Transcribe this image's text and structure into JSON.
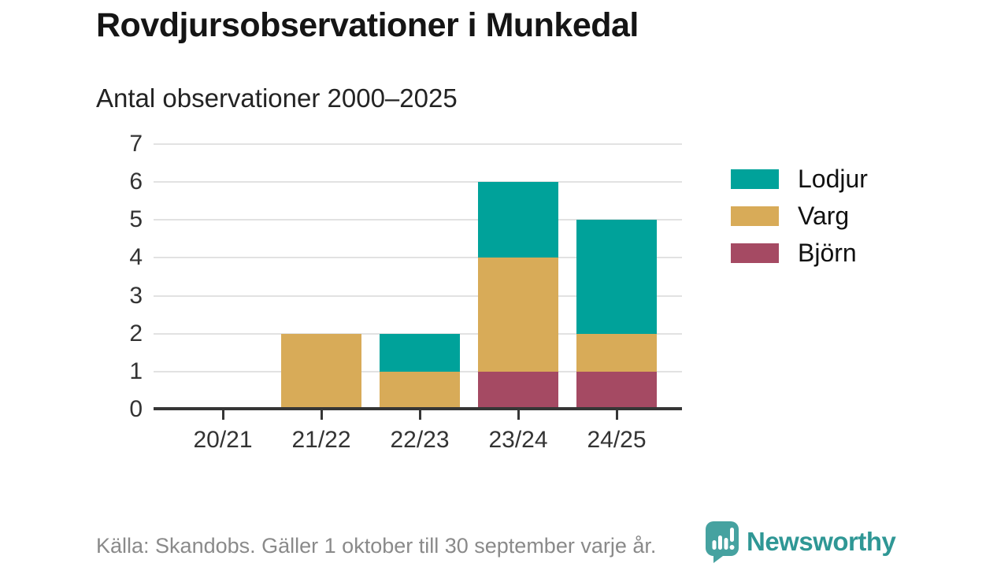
{
  "header": {
    "title": "Rovdjursobservationer i Munkedal",
    "subtitle": "Antal observationer 2000–2025"
  },
  "chart_data": {
    "type": "bar",
    "stacked": true,
    "title": "Rovdjursobservationer i Munkedal",
    "subtitle": "Antal observationer 2000–2025",
    "categories": [
      "20/21",
      "21/22",
      "22/23",
      "23/24",
      "24/25"
    ],
    "series": [
      {
        "name": "Lodjur",
        "color": "#00a29a",
        "values": [
          0,
          0,
          1,
          2,
          3
        ]
      },
      {
        "name": "Varg",
        "color": "#d8ab58",
        "values": [
          0,
          2,
          1,
          3,
          1
        ]
      },
      {
        "name": "Björn",
        "color": "#a54a63",
        "values": [
          0,
          0,
          0,
          1,
          1
        ]
      }
    ],
    "stack_order_bottom_to_top": [
      "Björn",
      "Varg",
      "Lodjur"
    ],
    "totals": [
      0,
      2,
      2,
      6,
      5
    ],
    "xlabel": "",
    "ylabel": "",
    "ylim": [
      0,
      7
    ],
    "yticks": [
      0,
      1,
      2,
      3,
      4,
      5,
      6,
      7
    ],
    "grid": true,
    "legend_position": "right"
  },
  "footer": {
    "source": "Källa: Skandobs. Gäller 1 oktober till 30 september varje år.",
    "brand": "Newsworthy"
  },
  "colors": {
    "lodjur": "#00a29a",
    "varg": "#d8ab58",
    "bjorn": "#a54a63",
    "grid": "#e2e2e2",
    "axis": "#363636",
    "text_title": "#151515",
    "text_axis": "#333333",
    "text_muted": "#8a8a8a",
    "brand_text": "#2f9795",
    "brand_icon": "#46a2a0"
  }
}
